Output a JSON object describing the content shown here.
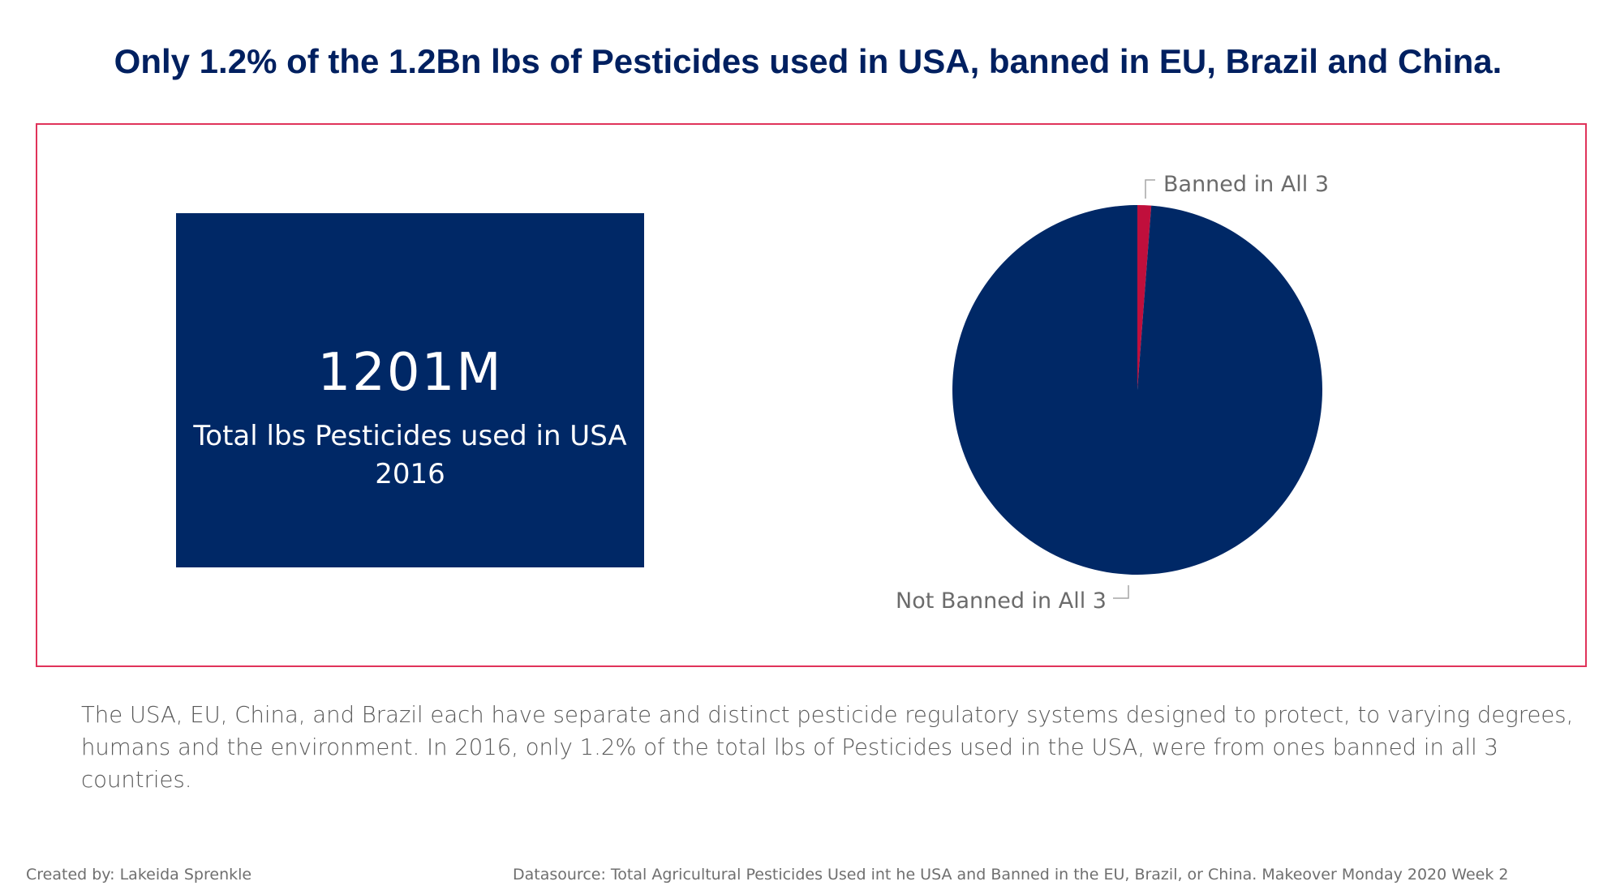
{
  "title": "Only 1.2% of the 1.2Bn lbs of Pesticides used in USA, banned in EU, Brazil and China.",
  "kpi": {
    "value": "1201M",
    "label_line1": "Total lbs Pesticides used in USA",
    "label_line2": "2016"
  },
  "chart_data": {
    "type": "pie",
    "slices": [
      {
        "label": "Banned in All 3",
        "value": 1.2,
        "color": "#c00f3c"
      },
      {
        "label": "Not Banned in All 3",
        "value": 98.8,
        "color": "#002866"
      }
    ]
  },
  "description": "The USA, EU, China, and Brazil each have separate and distinct pesticide regulatory systems designed to protect, to varying degrees, humans and the environment. In 2016, only 1.2% of the total lbs of Pesticides used in the USA, were from ones banned in all 3 countries.",
  "footer": {
    "created_by": "Created by: Lakeida Sprenkle",
    "datasource": "Datasource: Total Agricultural Pesticides Used int he USA and Banned in the EU, Brazil, or China. Makeover Monday 2020 Week 2"
  },
  "colors": {
    "title": "#002060",
    "kpi_background": "#002866",
    "frame_border": "#e0335a"
  }
}
